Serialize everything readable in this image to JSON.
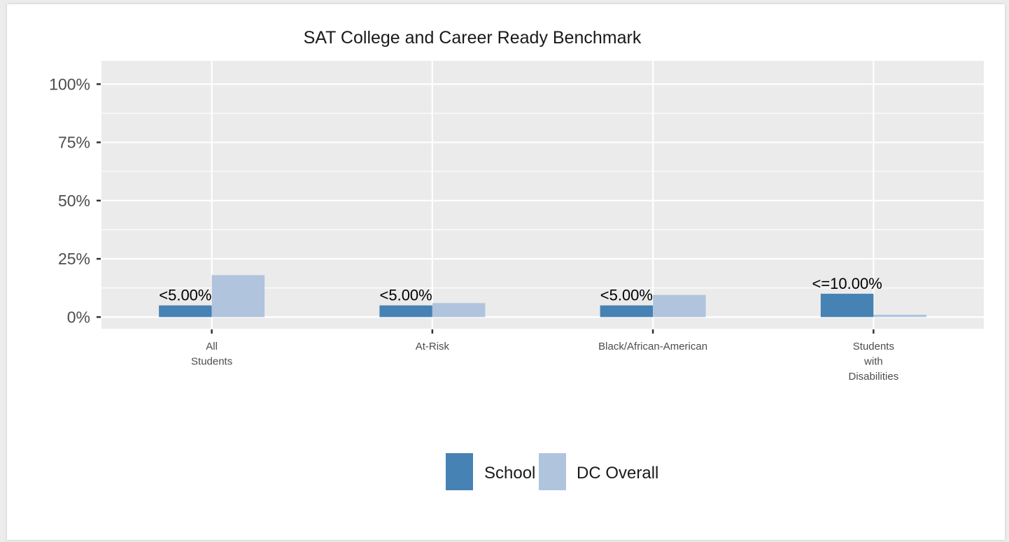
{
  "chart_data": {
    "type": "bar",
    "title": "SAT College and Career Ready Benchmark",
    "xlabel": "",
    "ylabel": "",
    "categories": [
      [
        "All",
        "Students"
      ],
      [
        "At-Risk"
      ],
      [
        "Black/African-American"
      ],
      [
        "Students",
        "with",
        "Disabilities"
      ]
    ],
    "series": [
      {
        "name": "School",
        "color": "#4682b4",
        "values": [
          5,
          5,
          5,
          10
        ],
        "labels": [
          "<5.00%",
          "<5.00%",
          "<5.00%",
          "<=10.00%"
        ]
      },
      {
        "name": "DC Overall",
        "color": "#b0c4de",
        "values": [
          18,
          6,
          9.5,
          1
        ],
        "labels": [
          "",
          "",
          "",
          ""
        ]
      }
    ],
    "ylim": [
      -5,
      110
    ],
    "yticks": [
      0,
      25,
      50,
      75,
      100
    ],
    "ytick_labels": [
      "0%",
      "25%",
      "50%",
      "75%",
      "100%"
    ],
    "grid": true,
    "legend": "bottom"
  }
}
